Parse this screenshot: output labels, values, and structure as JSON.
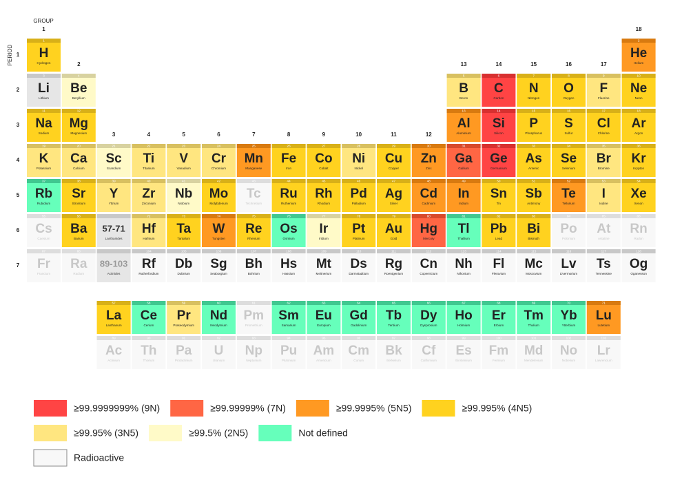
{
  "axis": {
    "group_title": "GROUP",
    "period_title": "PERIOD",
    "groups": [
      1,
      2,
      3,
      4,
      5,
      6,
      7,
      8,
      9,
      10,
      11,
      12,
      13,
      14,
      15,
      16,
      17,
      18
    ],
    "periods": [
      1,
      2,
      3,
      4,
      5,
      6,
      7
    ]
  },
  "placeholders": [
    {
      "label": "57-71",
      "name": "Lanthanides"
    },
    {
      "label": "89-103",
      "name": "Actinides"
    }
  ],
  "categories": [
    {
      "label": "≥99.9999999% (9N)",
      "color": "#ff4444",
      "band": "#d83030",
      "text": "#222222"
    },
    {
      "label": "≥99.99999% (7N)",
      "color": "#ff6644",
      "band": "#d84a2c",
      "text": "#222222"
    },
    {
      "label": "≥99.9995% (5N5)",
      "color": "#ff9922",
      "band": "#d87a10",
      "text": "#222222"
    },
    {
      "label": "≥99.995% (4N5)",
      "color": "#ffd21f",
      "band": "#d8b018",
      "text": "#222222"
    },
    {
      "label": "≥99.95% (3N5)",
      "color": "#ffe680",
      "band": "#d8c060",
      "text": "#222222"
    },
    {
      "label": "≥99.5% (2N5)",
      "color": "#fffac8",
      "band": "#d8d2a0",
      "text": "#222222"
    },
    {
      "label": "Not defined",
      "color": "#66ffbb",
      "band": "#40c890",
      "text": "#222222"
    },
    {
      "label": "Radioactive",
      "color": "#f8f8f8",
      "band": "#c8c8c8",
      "text": "#222222"
    },
    {
      "color": "#f8f8f8",
      "band": "#dddddd",
      "text": "#c8c8c8"
    },
    {
      "color": "#e6e6e6",
      "band": "#c8c8c8",
      "text": "#222222"
    }
  ],
  "elements": [
    [
      1,
      "H",
      "Hydrogen",
      3
    ],
    [
      2,
      "He",
      "Helium",
      2
    ],
    [
      3,
      "Li",
      "Lithium",
      9
    ],
    [
      4,
      "Be",
      "Beryllium",
      5
    ],
    [
      5,
      "B",
      "Boron",
      4
    ],
    [
      6,
      "C",
      "Carbon",
      0
    ],
    [
      7,
      "N",
      "Nitrogen",
      3
    ],
    [
      8,
      "O",
      "Oxygen",
      3
    ],
    [
      9,
      "F",
      "Fluorine",
      4
    ],
    [
      10,
      "Ne",
      "Neon",
      3
    ],
    [
      11,
      "Na",
      "Sodium",
      3
    ],
    [
      12,
      "Mg",
      "Magnesium",
      3
    ],
    [
      13,
      "Al",
      "Aluminium",
      2
    ],
    [
      14,
      "Si",
      "Silicon",
      0
    ],
    [
      15,
      "P",
      "Phosphorus",
      3
    ],
    [
      16,
      "S",
      "Sulfur",
      3
    ],
    [
      17,
      "Cl",
      "Chlorine",
      3
    ],
    [
      18,
      "Ar",
      "Argon",
      3
    ],
    [
      19,
      "K",
      "Potassium",
      4
    ],
    [
      20,
      "Ca",
      "Calcium",
      4
    ],
    [
      21,
      "Sc",
      "Scandium",
      5
    ],
    [
      22,
      "Ti",
      "Titanium",
      4
    ],
    [
      23,
      "V",
      "Vanadium",
      4
    ],
    [
      24,
      "Cr",
      "Chromium",
      4
    ],
    [
      25,
      "Mn",
      "Manganese",
      2
    ],
    [
      26,
      "Fe",
      "Iron",
      3
    ],
    [
      27,
      "Co",
      "Cobalt",
      3
    ],
    [
      28,
      "Ni",
      "Nickel",
      4
    ],
    [
      29,
      "Cu",
      "Copper",
      3
    ],
    [
      30,
      "Zn",
      "Zinc",
      2
    ],
    [
      31,
      "Ga",
      "Gallium",
      1
    ],
    [
      32,
      "Ge",
      "Germanium",
      0
    ],
    [
      33,
      "As",
      "Arsenic",
      3
    ],
    [
      34,
      "Se",
      "Selenium",
      3
    ],
    [
      35,
      "Br",
      "Bromine",
      4
    ],
    [
      36,
      "Kr",
      "Krypton",
      3
    ],
    [
      37,
      "Rb",
      "Rubidium",
      6
    ],
    [
      38,
      "Sr",
      "Strontium",
      3
    ],
    [
      39,
      "Y",
      "Yttrium",
      4
    ],
    [
      40,
      "Zr",
      "Zirconium",
      4
    ],
    [
      41,
      "Nb",
      "Niobium",
      5
    ],
    [
      42,
      "Mo",
      "Molybdenum",
      3
    ],
    [
      43,
      "Tc",
      "Technetium",
      8
    ],
    [
      44,
      "Ru",
      "Ruthenium",
      3
    ],
    [
      45,
      "Rh",
      "Rhodium",
      3
    ],
    [
      46,
      "Pd",
      "Palladium",
      3
    ],
    [
      47,
      "Ag",
      "Silver",
      3
    ],
    [
      48,
      "Cd",
      "Cadmium",
      2
    ],
    [
      49,
      "In",
      "Indium",
      2
    ],
    [
      50,
      "Sn",
      "Tin",
      3
    ],
    [
      51,
      "Sb",
      "Antimony",
      3
    ],
    [
      52,
      "Te",
      "Tellurium",
      2
    ],
    [
      53,
      "I",
      "Iodine",
      4
    ],
    [
      54,
      "Xe",
      "Xenon",
      3
    ],
    [
      55,
      "Cs",
      "Caesium",
      8
    ],
    [
      56,
      "Ba",
      "Barium",
      3
    ],
    [
      57,
      "La",
      "Lanthanum",
      3
    ],
    [
      58,
      "Ce",
      "Cerium",
      6
    ],
    [
      59,
      "Pr",
      "Praseodymium",
      4
    ],
    [
      60,
      "Nd",
      "Neodymium",
      6
    ],
    [
      61,
      "Pm",
      "Promethium",
      8
    ],
    [
      62,
      "Sm",
      "Samarium",
      6
    ],
    [
      63,
      "Eu",
      "Europium",
      6
    ],
    [
      64,
      "Gd",
      "Gadolinium",
      6
    ],
    [
      65,
      "Tb",
      "Terbium",
      6
    ],
    [
      66,
      "Dy",
      "Dysprosium",
      6
    ],
    [
      67,
      "Ho",
      "Holmium",
      6
    ],
    [
      68,
      "Er",
      "Erbium",
      6
    ],
    [
      69,
      "Tm",
      "Thulium",
      6
    ],
    [
      70,
      "Yb",
      "Ytterbium",
      6
    ],
    [
      71,
      "Lu",
      "Lutetium",
      2
    ],
    [
      72,
      "Hf",
      "Hafnium",
      4
    ],
    [
      73,
      "Ta",
      "Tantalum",
      3
    ],
    [
      74,
      "W",
      "Tungsten",
      2
    ],
    [
      75,
      "Re",
      "Rhenium",
      3
    ],
    [
      76,
      "Os",
      "Osmium",
      6
    ],
    [
      77,
      "Ir",
      "Iridium",
      5
    ],
    [
      78,
      "Pt",
      "Platinum",
      3
    ],
    [
      79,
      "Au",
      "Gold",
      3
    ],
    [
      80,
      "Hg",
      "Mercury",
      1
    ],
    [
      81,
      "Tl",
      "Thallium",
      6
    ],
    [
      82,
      "Pb",
      "Lead",
      3
    ],
    [
      83,
      "Bi",
      "Bismuth",
      3
    ],
    [
      84,
      "Po",
      "Polonium",
      8
    ],
    [
      85,
      "At",
      "Astatine",
      8
    ],
    [
      86,
      "Rn",
      "Radon",
      8
    ],
    [
      87,
      "Fr",
      "Francium",
      8
    ],
    [
      88,
      "Ra",
      "Radium",
      8
    ],
    [
      89,
      "Ac",
      "Actinium",
      8
    ],
    [
      90,
      "Th",
      "Thorium",
      8
    ],
    [
      91,
      "Pa",
      "Protactinium",
      8
    ],
    [
      92,
      "U",
      "Uranium",
      8
    ],
    [
      93,
      "Np",
      "Neptunium",
      8
    ],
    [
      94,
      "Pu",
      "Plutonium",
      8
    ],
    [
      95,
      "Am",
      "Americium",
      8
    ],
    [
      96,
      "Cm",
      "Curium",
      8
    ],
    [
      97,
      "Bk",
      "Berkelium",
      8
    ],
    [
      98,
      "Cf",
      "Californium",
      8
    ],
    [
      99,
      "Es",
      "Einsteinium",
      8
    ],
    [
      100,
      "Fm",
      "Fermium",
      8
    ],
    [
      101,
      "Md",
      "Mendelevium",
      8
    ],
    [
      102,
      "No",
      "Nobelium",
      8
    ],
    [
      103,
      "Lr",
      "Lawrencium",
      8
    ],
    [
      104,
      "Rf",
      "Rutherfordium",
      7
    ],
    [
      105,
      "Db",
      "Dubnium",
      7
    ],
    [
      106,
      "Sg",
      "Seaborgium",
      7
    ],
    [
      107,
      "Bh",
      "Bohrium",
      7
    ],
    [
      108,
      "Hs",
      "Hassium",
      7
    ],
    [
      109,
      "Mt",
      "Meitnerium",
      7
    ],
    [
      110,
      "Ds",
      "Darmstadtium",
      7
    ],
    [
      111,
      "Rg",
      "Roentgenium",
      7
    ],
    [
      112,
      "Cn",
      "Copernicium",
      7
    ],
    [
      113,
      "Nh",
      "Nihonium",
      7
    ],
    [
      114,
      "Fl",
      "Flerovium",
      7
    ],
    [
      115,
      "Mc",
      "Moscovium",
      7
    ],
    [
      116,
      "Lv",
      "Livermorium",
      7
    ],
    [
      117,
      "Ts",
      "Tennessine",
      7
    ],
    [
      118,
      "Og",
      "Oganesson",
      7
    ]
  ]
}
